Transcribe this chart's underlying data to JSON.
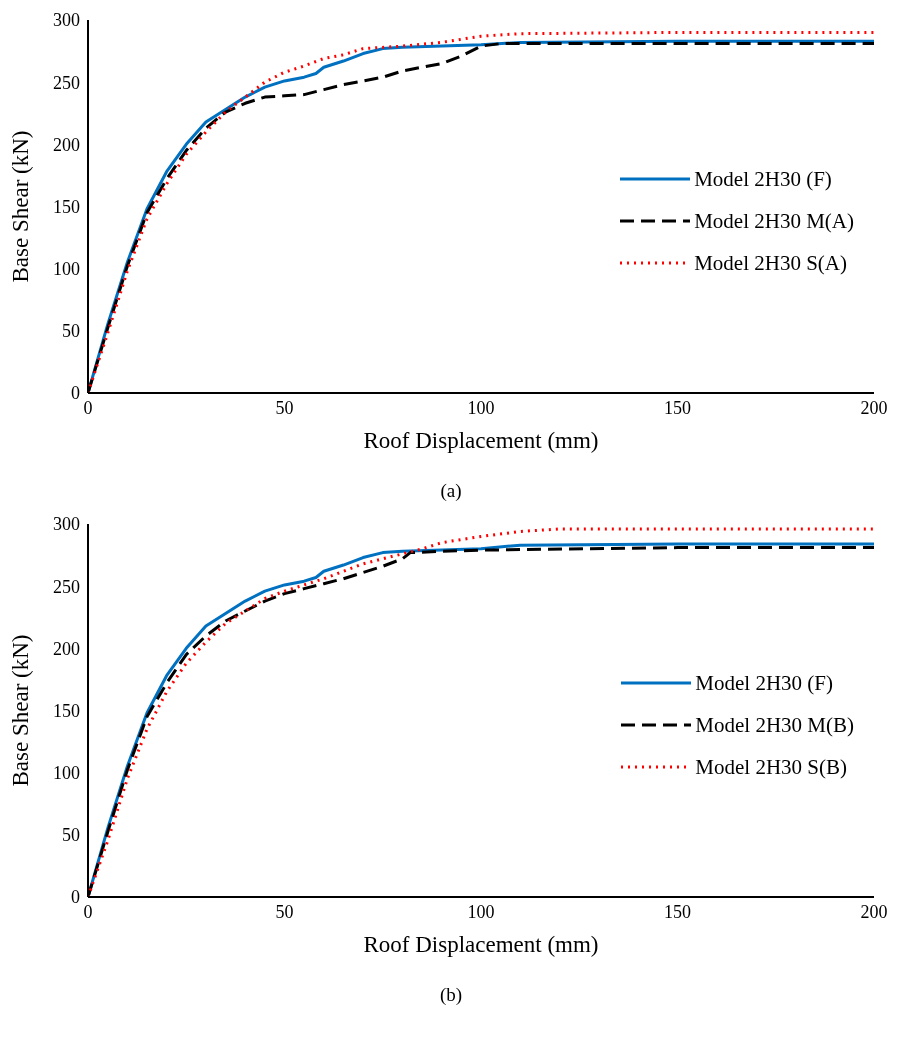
{
  "chart_data": [
    {
      "type": "line",
      "xlabel": "Roof Displacement (mm)",
      "ylabel": "Base Shear (kN)",
      "annotations": [
        "(a)"
      ],
      "xlim": [
        0,
        200
      ],
      "xticks": [
        0,
        50,
        100,
        150,
        200
      ],
      "ylim": [
        0,
        300
      ],
      "yticks": [
        0,
        50,
        100,
        150,
        200,
        250,
        300
      ],
      "grid": false,
      "legend": "right",
      "marker": "none",
      "series": [
        {
          "name": "Model 2H30 (F)",
          "color": "#0070c0",
          "line_style": "solid",
          "x": [
            0,
            5,
            10,
            15,
            20,
            25,
            30,
            35,
            40,
            45,
            50,
            55,
            58,
            60,
            65,
            70,
            75,
            80,
            90,
            100,
            110,
            150,
            200
          ],
          "values": [
            0,
            55,
            105,
            148,
            178,
            200,
            218,
            228,
            238,
            246,
            251,
            254,
            257,
            262,
            267,
            273,
            277,
            278,
            279,
            280,
            282,
            283,
            283
          ]
        },
        {
          "name": "Model 2H30 M(A)",
          "color": "#000000",
          "line_style": "dashed",
          "x": [
            0,
            5,
            10,
            15,
            20,
            25,
            30,
            35,
            40,
            45,
            50,
            55,
            60,
            65,
            70,
            75,
            80,
            90,
            95,
            100,
            105,
            200
          ],
          "values": [
            0,
            52,
            102,
            145,
            172,
            195,
            213,
            226,
            233,
            238,
            239,
            240,
            244,
            248,
            251,
            254,
            259,
            265,
            271,
            279,
            281,
            281
          ]
        },
        {
          "name": "Model 2H30 S(A)",
          "color": "#ff0000",
          "line_style": "dotted",
          "x": [
            0,
            5,
            10,
            15,
            20,
            25,
            30,
            35,
            40,
            45,
            50,
            55,
            60,
            65,
            70,
            80,
            90,
            100,
            110,
            150,
            200
          ],
          "values": [
            0,
            48,
            98,
            140,
            168,
            192,
            210,
            226,
            238,
            250,
            258,
            263,
            269,
            272,
            277,
            279,
            282,
            287,
            289,
            290,
            290
          ]
        }
      ]
    },
    {
      "type": "line",
      "xlabel": "Roof Displacement (mm)",
      "ylabel": "Base Shear (kN)",
      "annotations": [
        "(b)"
      ],
      "xlim": [
        0,
        200
      ],
      "xticks": [
        0,
        50,
        100,
        150,
        200
      ],
      "ylim": [
        0,
        300
      ],
      "yticks": [
        0,
        50,
        100,
        150,
        200,
        250,
        300
      ],
      "grid": false,
      "legend": "right",
      "marker": "none",
      "series": [
        {
          "name": "Model 2H30 (F)",
          "color": "#0070c0",
          "line_style": "solid",
          "x": [
            0,
            5,
            10,
            15,
            20,
            25,
            30,
            35,
            40,
            45,
            50,
            55,
            58,
            60,
            65,
            70,
            75,
            80,
            90,
            100,
            110,
            150,
            200
          ],
          "values": [
            0,
            55,
            105,
            148,
            178,
            200,
            218,
            228,
            238,
            246,
            251,
            254,
            257,
            262,
            267,
            273,
            277,
            278,
            279,
            280,
            283,
            284,
            284
          ]
        },
        {
          "name": "Model 2H30 M(B)",
          "color": "#000000",
          "line_style": "dashed",
          "x": [
            0,
            5,
            10,
            15,
            20,
            25,
            30,
            35,
            40,
            45,
            50,
            55,
            60,
            65,
            70,
            75,
            80,
            82,
            90,
            100,
            150,
            200
          ],
          "values": [
            0,
            52,
            102,
            145,
            172,
            195,
            210,
            222,
            230,
            238,
            244,
            248,
            252,
            256,
            261,
            266,
            272,
            277,
            278,
            279,
            281,
            281
          ]
        },
        {
          "name": "Model 2H30 S(B)",
          "color": "#ff0000",
          "line_style": "dotted",
          "x": [
            0,
            5,
            10,
            15,
            20,
            25,
            30,
            35,
            40,
            45,
            50,
            55,
            60,
            70,
            80,
            85,
            90,
            100,
            110,
            120,
            150,
            200
          ],
          "values": [
            0,
            45,
            95,
            135,
            165,
            188,
            205,
            220,
            230,
            240,
            246,
            251,
            256,
            268,
            276,
            280,
            285,
            290,
            294,
            296,
            296,
            296
          ]
        }
      ]
    }
  ]
}
